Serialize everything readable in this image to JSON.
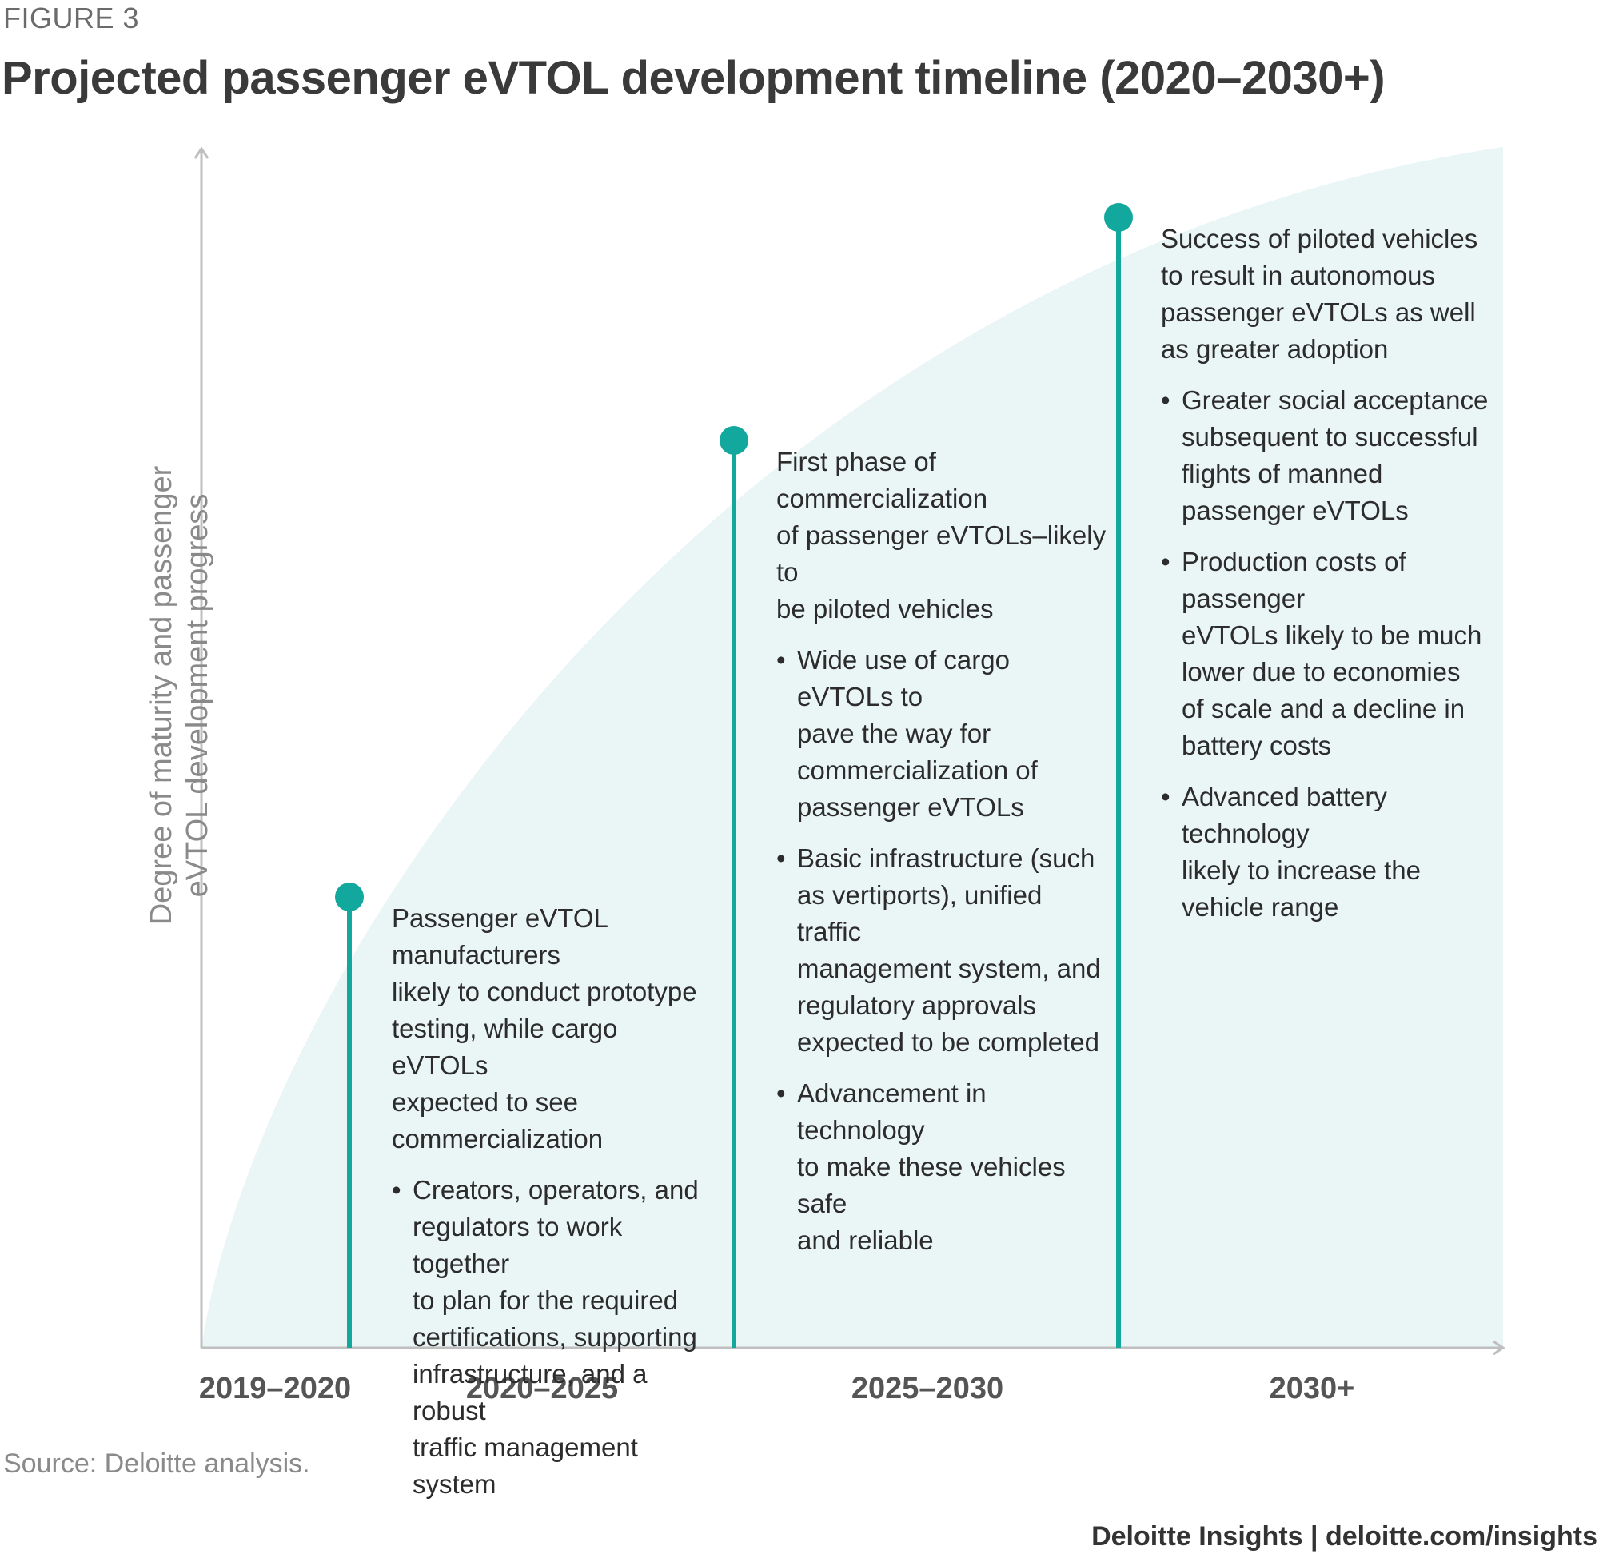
{
  "figure_label": "FIGURE 3",
  "title": "Projected passenger eVTOL development timeline (2020–2030+)",
  "y_axis_label": [
    "Degree of maturity and passenger",
    "eVTOL development progress"
  ],
  "x_axis_labels": [
    "2019–2020",
    "2020–2025",
    "2025–2030",
    "2030+"
  ],
  "colors": {
    "accent": "#12a89d",
    "area_fill": "#eaf5f6",
    "axis": "#bfbfbf"
  },
  "milestones": [
    {
      "lead": "Passenger eVTOL manufacturers\nlikely to conduct prototype\ntesting, while cargo eVTOLs\nexpected to see\ncommercialization",
      "bullets": [
        "Creators, operators, and\nregulators to work together\nto plan for the required\ncertifications, supporting\ninfrastructure, and a robust\ntraffic management system"
      ]
    },
    {
      "lead": "First phase of commercialization\nof passenger eVTOLs–likely to\nbe piloted vehicles",
      "bullets": [
        "Wide use of cargo eVTOLs to\npave the way for\ncommercialization of\npassenger eVTOLs",
        "Basic infrastructure (such\nas vertiports), unified traffic\nmanagement system, and\nregulatory approvals\nexpected to be completed",
        "Advancement in technology\nto make these vehicles safe\nand reliable"
      ]
    },
    {
      "lead": "Success of piloted vehicles\nto result in autonomous\npassenger eVTOLs as well\nas greater adoption",
      "bullets": [
        "Greater social acceptance\nsubsequent to successful\nflights of manned\npassenger eVTOLs",
        "Production costs of passenger\neVTOLs likely to be much\nlower due to economies\nof scale and a decline in\nbattery costs",
        "Advanced battery technology\nlikely to increase the\nvehicle range"
      ]
    }
  ],
  "source": "Source: Deloitte analysis.",
  "footer": "Deloitte Insights | deloitte.com/insights"
}
